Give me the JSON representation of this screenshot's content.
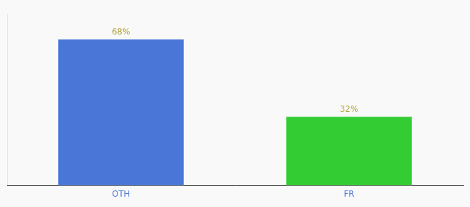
{
  "chart_data": {
    "type": "bar",
    "categories": [
      "OTH",
      "FR"
    ],
    "values": [
      68,
      32
    ],
    "value_labels": [
      "68%",
      "32%"
    ],
    "colors": [
      "#4a76d8",
      "#33cc33"
    ],
    "ylim": [
      0,
      80
    ],
    "data_labels": true,
    "tick_labels": "x",
    "grid": false
  }
}
